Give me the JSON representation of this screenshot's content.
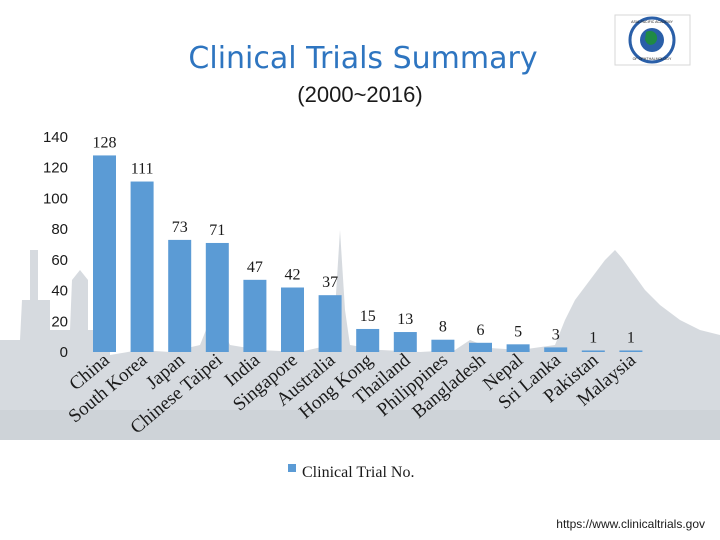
{
  "header": {
    "title": "Clinical Trials Summary",
    "subtitle": "(2000~2016)"
  },
  "logo": {
    "text_top": "ASIA-PACIFIC ACADEMY",
    "text_bottom": "OF OPHTHALMOLOGY"
  },
  "source": "https://www.clinicaltrials.gov",
  "colors": {
    "title": "#2e75c0",
    "bar": "#5b9bd5",
    "skyline": "#b5bcc4",
    "logo_green": "#1f8a45",
    "logo_blue": "#2a5fa8"
  },
  "chart_data": {
    "type": "bar",
    "title": "Clinical Trials Summary",
    "subtitle": "(2000~2016)",
    "categories": [
      "China",
      "South Korea",
      "Japan",
      "Chinese Taipei",
      "India",
      "Singapore",
      "Australia",
      "Hong Kong",
      "Thailand",
      "Philippines",
      "Bangladesh",
      "Nepal",
      "Sri Lanka",
      "Pakistan",
      "Malaysia"
    ],
    "series": [
      {
        "name": "Clinical Trial No.",
        "values": [
          128,
          111,
          73,
          71,
          47,
          42,
          37,
          15,
          13,
          8,
          6,
          5,
          3,
          1,
          1
        ]
      }
    ],
    "value_labels": [
      "128",
      "111",
      "73",
      "71",
      "47",
      "42",
      "37",
      "15",
      "13",
      "8",
      "6",
      "5",
      "3",
      "1",
      "1"
    ],
    "ylim": [
      0,
      140
    ],
    "yticks": [
      "0",
      "20",
      "40",
      "60",
      "80",
      "100",
      "120",
      "140"
    ],
    "legend_label": "Clinical Trial No.",
    "legend_position": "bottom",
    "grid": false
  }
}
